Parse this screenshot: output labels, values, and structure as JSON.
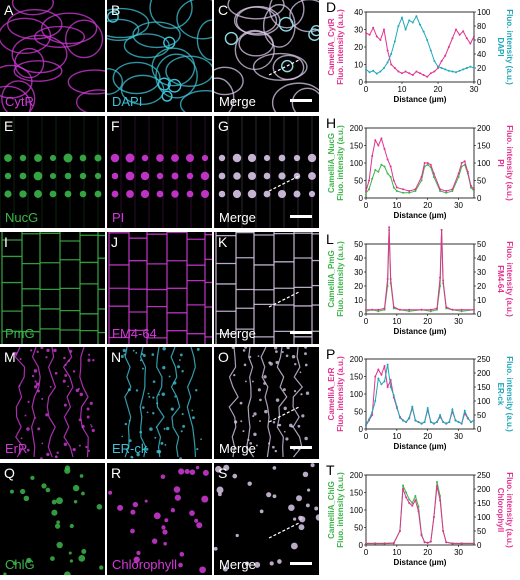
{
  "colors": {
    "magenta": "#e0338f",
    "cyan": "#1fa7b8",
    "green": "#3cb54a",
    "white": "#ffffff"
  },
  "rows": [
    {
      "panels": [
        {
          "letter": "A",
          "label": "CytR",
          "label_color": "#d23ad8"
        },
        {
          "letter": "B",
          "label": "DAPI",
          "label_color": "#3ec3d6"
        },
        {
          "letter": "C",
          "label": "Merge",
          "label_color": "#ffffff"
        }
      ],
      "chart": {
        "letter": "D",
        "left_label": [
          "CamelliA_CytR",
          "Fluo. intensity (a.u.)"
        ],
        "right_label": [
          "DAPI",
          "Fluo. intensity (a.u.)"
        ],
        "left_color": "#e0338f",
        "right_color": "#1fa7b8",
        "xlabel": "Distance (μm)",
        "xticks": [
          0,
          10,
          20,
          30
        ],
        "xmax": 30,
        "yl_ticks": [
          0,
          10,
          20,
          30,
          40
        ],
        "yl_max": 40,
        "yr_ticks": [
          0,
          20,
          40,
          60,
          80,
          100
        ],
        "yr_max": 100,
        "series": [
          {
            "axis": "left",
            "color": "#e0338f",
            "x": [
              0,
              1,
              2,
              3,
              4,
              5,
              6,
              7,
              8,
              9,
              10,
              11,
              12,
              13,
              14,
              15,
              16,
              17,
              18,
              19,
              20,
              21,
              22,
              23,
              24,
              25,
              26,
              27,
              28,
              29,
              30
            ],
            "y": [
              28,
              27,
              31,
              26,
              24,
              30,
              18,
              10,
              8,
              6,
              5,
              6,
              5,
              4,
              6,
              5,
              4,
              3,
              5,
              6,
              8,
              12,
              15,
              20,
              25,
              30,
              27,
              29,
              25,
              22,
              26
            ]
          },
          {
            "axis": "right",
            "color": "#1fa7b8",
            "x": [
              0,
              1,
              2,
              3,
              4,
              5,
              6,
              7,
              8,
              9,
              10,
              11,
              12,
              13,
              14,
              15,
              16,
              17,
              18,
              19,
              20,
              21,
              22,
              23,
              24,
              25,
              26,
              27,
              28,
              29,
              30
            ],
            "y": [
              18,
              14,
              16,
              12,
              15,
              20,
              28,
              40,
              58,
              80,
              92,
              75,
              88,
              85,
              94,
              82,
              72,
              60,
              45,
              30,
              22,
              20,
              18,
              16,
              15,
              14,
              16,
              18,
              20,
              22,
              20
            ]
          }
        ]
      }
    },
    {
      "panels": [
        {
          "letter": "E",
          "label": "NucG",
          "label_color": "#3cb54a"
        },
        {
          "letter": "F",
          "label": "PI",
          "label_color": "#d23ad8"
        },
        {
          "letter": "G",
          "label": "Merge",
          "label_color": "#ffffff"
        }
      ],
      "chart": {
        "letter": "H",
        "left_label": [
          "CamelliA_NucG",
          "Fluo. intensity (a.u.)"
        ],
        "right_label": [
          "PI",
          "Fluo. intensity (a.u.)"
        ],
        "left_color": "#3cb54a",
        "right_color": "#e0338f",
        "xlabel": "Distance (μm)",
        "xticks": [
          0,
          10,
          20,
          30
        ],
        "xmax": 35,
        "yl_ticks": [
          0,
          50,
          100,
          150,
          200
        ],
        "yl_max": 200,
        "yr_ticks": [
          0,
          50,
          100,
          150,
          200
        ],
        "yr_max": 200,
        "series": [
          {
            "axis": "left",
            "color": "#3cb54a",
            "x": [
              0,
              1,
              2,
              3,
              4,
              5,
              6,
              7,
              8,
              9,
              10,
              12,
              14,
              16,
              18,
              19,
              20,
              21,
              22,
              24,
              26,
              28,
              30,
              31,
              32,
              33,
              34,
              35
            ],
            "y": [
              15,
              25,
              55,
              80,
              75,
              95,
              90,
              70,
              60,
              30,
              20,
              15,
              15,
              20,
              50,
              90,
              95,
              88,
              60,
              20,
              15,
              20,
              60,
              90,
              95,
              70,
              30,
              20
            ]
          },
          {
            "axis": "right",
            "color": "#e0338f",
            "x": [
              0,
              1,
              2,
              3,
              4,
              5,
              6,
              7,
              8,
              9,
              10,
              12,
              14,
              16,
              18,
              19,
              20,
              21,
              22,
              24,
              26,
              28,
              30,
              31,
              32,
              33,
              34,
              35
            ],
            "y": [
              20,
              50,
              120,
              165,
              150,
              170,
              140,
              110,
              90,
              50,
              30,
              25,
              20,
              25,
              60,
              100,
              100,
              95,
              70,
              25,
              20,
              25,
              70,
              100,
              105,
              75,
              35,
              25
            ]
          }
        ]
      }
    },
    {
      "panels": [
        {
          "letter": "I",
          "label": "PmG",
          "label_color": "#3cb54a"
        },
        {
          "letter": "J",
          "label": "FM4-64",
          "label_color": "#d23ad8"
        },
        {
          "letter": "K",
          "label": "Merge",
          "label_color": "#ffffff"
        }
      ],
      "chart": {
        "letter": "L",
        "left_label": [
          "CamelliA_PmG",
          "Fluo. intensity (a.u.)"
        ],
        "right_label": [
          "FM4-64",
          "Fluo. intensity (a.u.)"
        ],
        "left_color": "#3cb54a",
        "right_color": "#e0338f",
        "xlabel": "Distance (μm)",
        "xticks": [
          0,
          10,
          20,
          30
        ],
        "xmax": 35,
        "yl_ticks": [
          0,
          10,
          20,
          30,
          40,
          50
        ],
        "yl_max": 50,
        "yr_ticks": [
          0,
          10,
          20,
          30,
          40,
          50
        ],
        "yr_max": 50,
        "series": [
          {
            "axis": "left",
            "color": "#3cb54a",
            "x": [
              0,
              2,
              4,
              6,
              7,
              7.5,
              8,
              9,
              11,
              14,
              18,
              21,
              23,
              24,
              24.5,
              25,
              26,
              28,
              31,
              35
            ],
            "y": [
              2,
              3,
              2,
              3,
              20,
              60,
              22,
              4,
              3,
              2,
              3,
              2,
              3,
              20,
              60,
              22,
              4,
              3,
              2,
              3
            ]
          },
          {
            "axis": "right",
            "color": "#e0338f",
            "x": [
              0,
              2,
              4,
              6,
              7,
              7.5,
              8,
              9,
              11,
              14,
              18,
              21,
              23,
              24,
              24.5,
              25,
              26,
              28,
              31,
              35
            ],
            "y": [
              3,
              3,
              3,
              4,
              25,
              62,
              25,
              5,
              3,
              3,
              3,
              3,
              4,
              26,
              60,
              24,
              5,
              3,
              3,
              3
            ]
          }
        ]
      }
    },
    {
      "panels": [
        {
          "letter": "M",
          "label": "ErR",
          "label_color": "#d23ad8"
        },
        {
          "letter": "N",
          "label": "ER-ck",
          "label_color": "#3ec3d6"
        },
        {
          "letter": "O",
          "label": "Merge",
          "label_color": "#ffffff"
        }
      ],
      "chart": {
        "letter": "P",
        "left_label": [
          "CamelliA_ErR",
          "Fluo. intensity (a.u.)"
        ],
        "right_label": [
          "ER-ck",
          "Fluo. intensity (a.u.)"
        ],
        "left_color": "#e0338f",
        "right_color": "#1fa7b8",
        "xlabel": "Distance (μm)",
        "xticks": [
          0,
          10,
          20,
          30
        ],
        "xmax": 35,
        "yl_ticks": [
          0,
          50,
          100,
          150,
          200
        ],
        "yl_max": 200,
        "yr_ticks": [
          0,
          50,
          100,
          150,
          200,
          250
        ],
        "yr_max": 250,
        "series": [
          {
            "axis": "left",
            "color": "#e0338f",
            "x": [
              0,
              1,
              2,
              3,
              4,
              5,
              6,
              7,
              8,
              9,
              10,
              11,
              12,
              13,
              14,
              15,
              16,
              17,
              18,
              19,
              20,
              21,
              22,
              23,
              24,
              25,
              26,
              27,
              28,
              29,
              30,
              31,
              32,
              33,
              34,
              35
            ],
            "y": [
              10,
              25,
              40,
              150,
              170,
              155,
              180,
              120,
              140,
              90,
              60,
              35,
              25,
              20,
              30,
              60,
              25,
              20,
              15,
              20,
              55,
              20,
              15,
              20,
              35,
              20,
              15,
              20,
              50,
              25,
              20,
              15,
              45,
              30,
              20,
              25
            ]
          },
          {
            "axis": "right",
            "color": "#1fa7b8",
            "x": [
              0,
              1,
              2,
              3,
              4,
              5,
              6,
              7,
              8,
              9,
              10,
              11,
              12,
              13,
              14,
              15,
              16,
              17,
              18,
              19,
              20,
              21,
              22,
              23,
              24,
              25,
              26,
              27,
              28,
              29,
              30,
              31,
              32,
              33,
              34,
              35
            ],
            "y": [
              15,
              35,
              60,
              100,
              180,
              160,
              170,
              230,
              150,
              120,
              80,
              40,
              30,
              25,
              40,
              80,
              30,
              25,
              20,
              25,
              75,
              25,
              20,
              25,
              50,
              25,
              20,
              25,
              70,
              30,
              25,
              20,
              65,
              40,
              25,
              30
            ]
          }
        ]
      }
    },
    {
      "panels": [
        {
          "letter": "Q",
          "label": "ChlG",
          "label_color": "#3cb54a"
        },
        {
          "letter": "R",
          "label": "Chlorophyll",
          "label_color": "#d23ad8"
        },
        {
          "letter": "S",
          "label": "Merge",
          "label_color": "#ffffff"
        }
      ],
      "chart": {
        "letter": "T",
        "left_label": [
          "CamelliA_ChlG",
          "Fluo. intensity (a.u.)"
        ],
        "right_label": [
          "Chlorophyll",
          "Fluo. intensity (a.u.)"
        ],
        "left_color": "#3cb54a",
        "right_color": "#e0338f",
        "xlabel": "Distance (μm)",
        "xticks": [
          0,
          10,
          20,
          30
        ],
        "xmax": 35,
        "yl_ticks": [
          0,
          50,
          100,
          150,
          200
        ],
        "yl_max": 200,
        "yr_ticks": [
          0,
          50,
          100,
          150,
          200,
          250
        ],
        "yr_max": 250,
        "series": [
          {
            "axis": "left",
            "color": "#3cb54a",
            "x": [
              0,
              3,
              6,
              9,
              11,
              12,
              13,
              14,
              15,
              16,
              17,
              18,
              19,
              20,
              21,
              22,
              23,
              24,
              25,
              26,
              28,
              31,
              35
            ],
            "y": [
              5,
              5,
              5,
              6,
              40,
              170,
              150,
              130,
              120,
              140,
              110,
              30,
              8,
              6,
              10,
              80,
              180,
              140,
              40,
              8,
              5,
              5,
              5
            ]
          },
          {
            "axis": "right",
            "color": "#e0338f",
            "x": [
              0,
              3,
              6,
              9,
              11,
              12,
              13,
              14,
              15,
              16,
              17,
              18,
              19,
              20,
              21,
              22,
              23,
              24,
              25,
              26,
              28,
              31,
              35
            ],
            "y": [
              5,
              5,
              5,
              6,
              50,
              200,
              170,
              150,
              140,
              160,
              120,
              35,
              10,
              8,
              12,
              100,
              210,
              160,
              50,
              10,
              5,
              5,
              5
            ]
          }
        ]
      }
    }
  ]
}
